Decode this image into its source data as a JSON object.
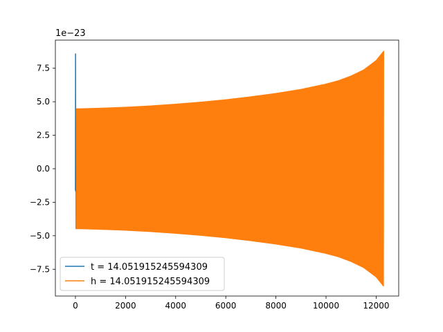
{
  "chart_data": {
    "type": "line",
    "title": "",
    "xlabel": "",
    "ylabel": "",
    "y_scale_label": "1e−23",
    "xlim": [
      -800,
      12900
    ],
    "ylim": [
      -9.5,
      9.6
    ],
    "x_ticks": [
      0,
      2000,
      4000,
      6000,
      8000,
      10000,
      12000
    ],
    "x_tick_labels": [
      "0",
      "2000",
      "4000",
      "6000",
      "8000",
      "10000",
      "12000"
    ],
    "y_ticks": [
      -7.5,
      -5.0,
      -2.5,
      0.0,
      2.5,
      5.0,
      7.5
    ],
    "y_tick_labels": [
      "−7.5",
      "−5.0",
      "−2.5",
      "0.0",
      "2.5",
      "5.0",
      "7.5"
    ],
    "grid": false,
    "legend_position": "lower-left",
    "series": [
      {
        "name": "t = 14.051915245594309",
        "color": "#1f77b4",
        "x": [
          0,
          5,
          10,
          20,
          30,
          40,
          50,
          60,
          70,
          80,
          90,
          100
        ],
        "y": [
          -1.6,
          8.6,
          -1.7,
          4.5,
          -4.5,
          4.5,
          -4.5,
          4.5,
          -4.5,
          4.5,
          -4.5,
          4.5
        ]
      },
      {
        "name": "h = 14.051915245594309",
        "color": "#ff7f0e",
        "x_start": 40,
        "x_end": 12300,
        "amplitude_at": {
          "x": [
            40,
            1000,
            2000,
            3000,
            4000,
            5000,
            6000,
            7000,
            8000,
            9000,
            10000,
            10500,
            11000,
            11500,
            12000,
            12300
          ],
          "amp": [
            4.5,
            4.55,
            4.62,
            4.72,
            4.85,
            5.0,
            5.18,
            5.4,
            5.65,
            5.95,
            6.35,
            6.6,
            6.95,
            7.4,
            8.1,
            8.8
          ]
        }
      }
    ]
  }
}
